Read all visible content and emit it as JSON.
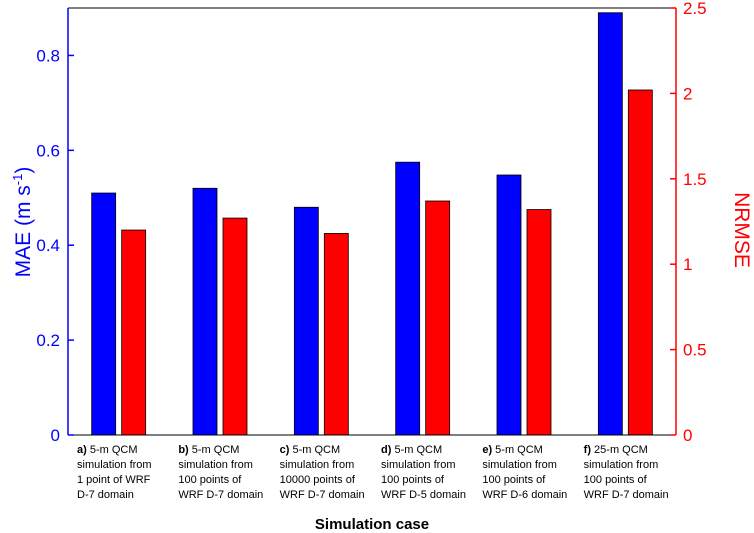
{
  "chart_data": {
    "type": "bar",
    "xlabel": "Simulation case",
    "categories": [
      {
        "letter": "a)",
        "lines": [
          "5-m QCM",
          "simulation from",
          "1 point of WRF",
          "D-7 domain"
        ]
      },
      {
        "letter": "b)",
        "lines": [
          "5-m QCM",
          "simulation from",
          "100 points of",
          "WRF D-7 domain"
        ]
      },
      {
        "letter": "c)",
        "lines": [
          "5-m QCM",
          "simulation from",
          "10000 points of",
          "WRF D-7 domain"
        ]
      },
      {
        "letter": "d)",
        "lines": [
          "5-m QCM",
          "simulation from",
          "100 points of",
          "WRF D-5 domain"
        ]
      },
      {
        "letter": "e)",
        "lines": [
          "5-m QCM",
          "simulation from",
          "100 points of",
          "WRF D-6 domain"
        ]
      },
      {
        "letter": "f)",
        "lines": [
          "25-m QCM",
          "simulation from",
          "100 points of",
          "WRF D-7 domain"
        ]
      }
    ],
    "series": [
      {
        "name": "MAE",
        "axis": "left",
        "color": "#0000ff",
        "values": [
          0.51,
          0.52,
          0.48,
          0.575,
          0.548,
          0.89
        ]
      },
      {
        "name": "NRMSE",
        "axis": "right",
        "color": "#ff0000",
        "values": [
          1.2,
          1.27,
          1.18,
          1.37,
          1.32,
          2.02
        ]
      }
    ],
    "y_left": {
      "label": "MAE (m s-1)",
      "label_base": "MAE (m s",
      "label_sup": "-1",
      "label_close": ")",
      "range": [
        0,
        0.9
      ],
      "ticks": [
        0,
        0.2,
        0.4,
        0.6,
        0.8
      ],
      "tick_labels": [
        "0",
        "0.2",
        "0.4",
        "0.6",
        "0.8"
      ],
      "color": "#0000ff"
    },
    "y_right": {
      "label": "NRMSE",
      "range": [
        0,
        2.5
      ],
      "ticks": [
        0,
        0.5,
        1,
        1.5,
        2,
        2.5
      ],
      "tick_labels": [
        "0",
        "0.5",
        "1",
        "1.5",
        "2",
        "2.5"
      ],
      "color": "#ff0000"
    }
  }
}
